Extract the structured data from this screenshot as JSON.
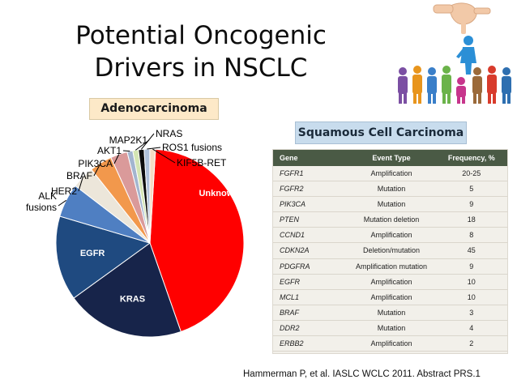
{
  "title_line1": "Potential Oncogenic",
  "title_line2": "Drivers in NSCLC",
  "adeno_label": "Adenocarcinoma",
  "squamous_label": "Squamous Cell Carcinoma",
  "table": {
    "headers": [
      "Gene",
      "Event Type",
      "Frequency, %"
    ],
    "rows": [
      [
        "FGFR1",
        "Amplification",
        "20-25"
      ],
      [
        "FGFR2",
        "Mutation",
        "5"
      ],
      [
        "PIK3CA",
        "Mutation",
        "9"
      ],
      [
        "PTEN",
        "Mutation deletion",
        "18"
      ],
      [
        "CCND1",
        "Amplification",
        "8"
      ],
      [
        "CDKN2A",
        "Deletion/mutation",
        "45"
      ],
      [
        "PDGFRA",
        "Amplification mutation",
        "9"
      ],
      [
        "EGFR",
        "Amplification",
        "10"
      ],
      [
        "MCL1",
        "Amplification",
        "10"
      ],
      [
        "BRAF",
        "Mutation",
        "3"
      ],
      [
        "DDR2",
        "Mutation",
        "4"
      ],
      [
        "ERBB2",
        "Amplification",
        "2"
      ]
    ]
  },
  "citation": "Hammerman P, et al. IASLC WCLC 2011. Abstract PRS.1",
  "chart_data": {
    "type": "pie",
    "title": "Adenocarcinoma",
    "labels": [
      "Unknown",
      "KRAS",
      "EGFR",
      "ALK fusions",
      "HER2",
      "BRAF",
      "PIK3CA",
      "AKT1",
      "MAP2K1",
      "NRAS",
      "ROS1 fusions",
      "KIF5B-RET"
    ],
    "values": [
      45,
      21,
      15,
      6,
      4,
      4,
      3,
      1,
      1,
      1,
      1,
      1
    ],
    "colors": [
      "#ff0000",
      "#17244a",
      "#1f4a80",
      "#4f7fc2",
      "#ece6da",
      "#f2984c",
      "#da9a9a",
      "#a3b5cf",
      "#d4e5b3",
      "#0d0d0d",
      "#b0c2da",
      "#f5dcc4"
    ]
  }
}
